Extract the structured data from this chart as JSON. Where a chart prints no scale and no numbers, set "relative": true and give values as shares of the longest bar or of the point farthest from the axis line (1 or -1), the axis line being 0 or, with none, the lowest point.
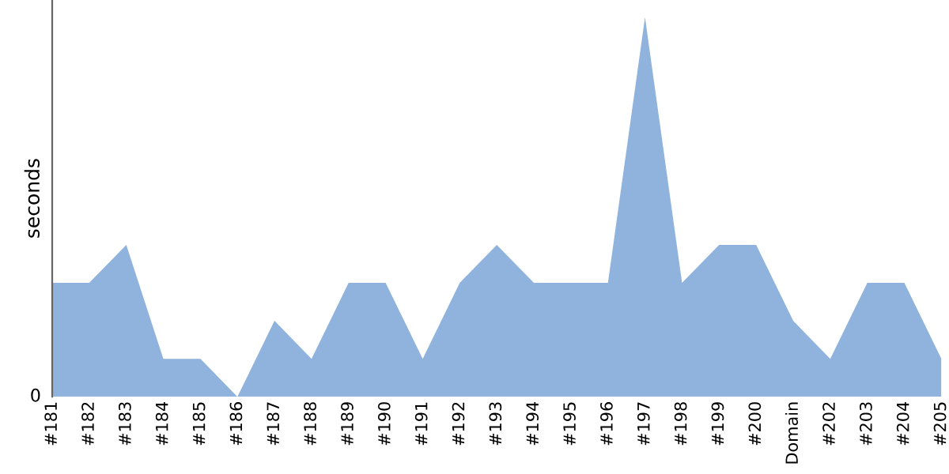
{
  "chart_data": {
    "type": "area",
    "relative": true,
    "ylabel": "seconds",
    "annotations": [
      "0"
    ],
    "color": "#8fb3dc",
    "categories": [
      "#181",
      "#182",
      "#183",
      "#184",
      "#185",
      "#186",
      "#187",
      "#188",
      "#189",
      "#190",
      "#191",
      "#192",
      "#193",
      "#194",
      "#195",
      "#196",
      "#197",
      "#198",
      "#199",
      "#200",
      "Domain",
      "#202",
      "#203",
      "#204",
      "#205"
    ],
    "values": [
      0.3,
      0.3,
      0.4,
      0.1,
      0.1,
      0,
      0.2,
      0.1,
      0.3,
      0.3,
      0.1,
      0.3,
      0.4,
      0.3,
      0.3,
      0.3,
      1,
      0.3,
      0.4,
      0.4,
      0.2,
      0.1,
      0.3,
      0.3,
      0.1
    ]
  }
}
